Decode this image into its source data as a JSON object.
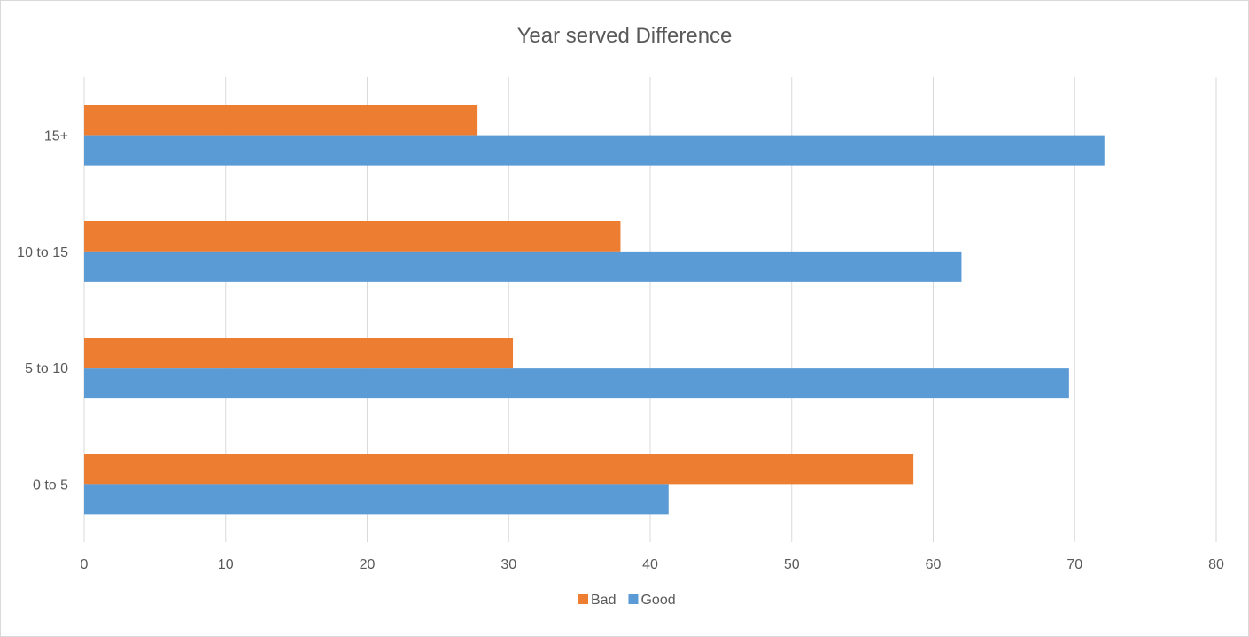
{
  "chart_data": {
    "type": "bar",
    "orientation": "horizontal",
    "title": "Year served Difference",
    "categories": [
      "0 to 5",
      "5 to 10",
      "10 to 15",
      "15+"
    ],
    "series": [
      {
        "name": "Bad",
        "color": "#ED7D31",
        "values": [
          58.6,
          30.3,
          37.9,
          27.8
        ]
      },
      {
        "name": "Good",
        "color": "#5B9BD5",
        "values": [
          41.3,
          69.6,
          62.0,
          72.1
        ]
      }
    ],
    "xlim": [
      0,
      80
    ],
    "x_ticks": [
      "0",
      "10",
      "20",
      "30",
      "40",
      "50",
      "60",
      "70",
      "80"
    ],
    "grid": "vertical",
    "legend": "bottom",
    "legend_items": [
      "Bad",
      "Good"
    ]
  }
}
